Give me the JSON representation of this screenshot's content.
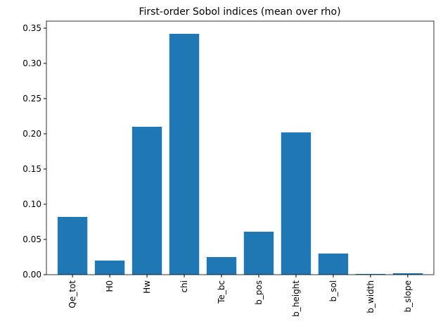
{
  "chart_data": {
    "type": "bar",
    "title": "First-order Sobol indices (mean over rho)",
    "categories": [
      "Qe_tot",
      "H0",
      "Hw",
      "chi",
      "Te_bc",
      "b_pos",
      "b_height",
      "b_sol",
      "b_width",
      "b_slope"
    ],
    "values": [
      0.082,
      0.02,
      0.21,
      0.342,
      0.025,
      0.061,
      0.202,
      0.03,
      0.001,
      0.002
    ],
    "color": "#1f77b4",
    "ylim": [
      0,
      0.36
    ],
    "yticks": [
      {
        "value": 0,
        "label": "0.00"
      },
      {
        "value": 0.05,
        "label": "0.05"
      },
      {
        "value": 0.1,
        "label": "0.10"
      },
      {
        "value": 0.15,
        "label": "0.15"
      },
      {
        "value": 0.2,
        "label": "0.20"
      },
      {
        "value": 0.25,
        "label": "0.25"
      },
      {
        "value": 0.3,
        "label": "0.30"
      },
      {
        "value": 0.35,
        "label": "0.35"
      }
    ],
    "grid": false
  }
}
